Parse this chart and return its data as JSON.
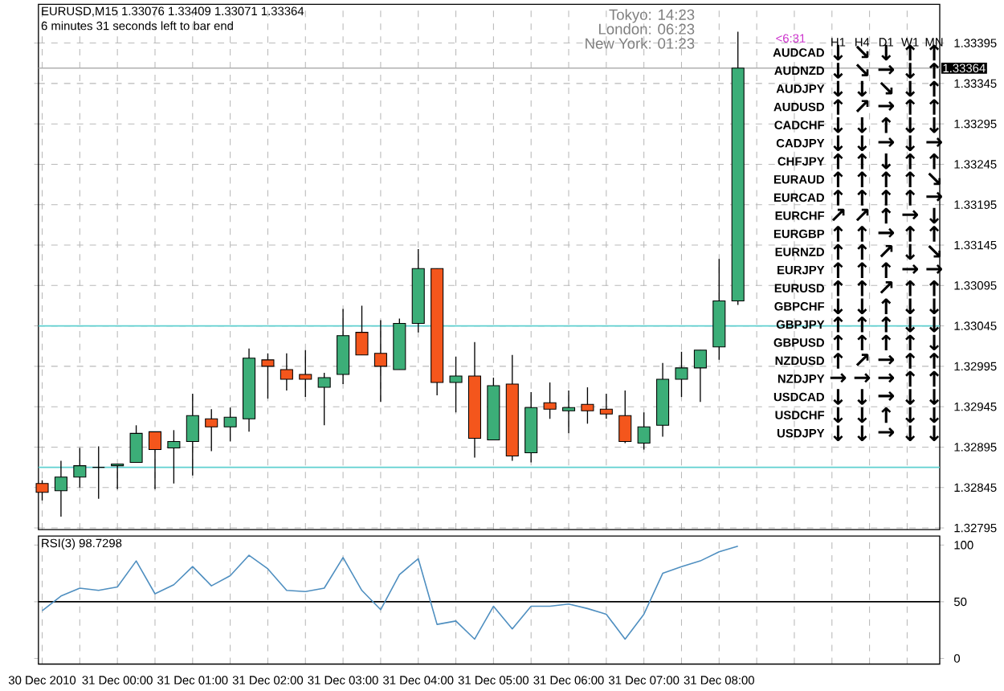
{
  "chart_data": [
    {
      "type": "candlestick",
      "title": "EURUSD,M15  1.33076 1.33409 1.33071 1.33364",
      "subtitle": "6 minutes 31 seconds left to bar end",
      "x": [
        "2010-12-30T23:00",
        "2010-12-30T23:15",
        "2010-12-30T23:30",
        "2010-12-30T23:45",
        "2010-12-31T00:00",
        "2010-12-31T00:15",
        "2010-12-31T00:30",
        "2010-12-31T00:45",
        "2010-12-31T01:00",
        "2010-12-31T01:15",
        "2010-12-31T01:30",
        "2010-12-31T01:45",
        "2010-12-31T02:00",
        "2010-12-31T02:15",
        "2010-12-31T02:30",
        "2010-12-31T02:45",
        "2010-12-31T03:00",
        "2010-12-31T03:15",
        "2010-12-31T03:30",
        "2010-12-31T03:45",
        "2010-12-31T04:00",
        "2010-12-31T04:15",
        "2010-12-31T04:30",
        "2010-12-31T04:45",
        "2010-12-31T05:00",
        "2010-12-31T05:15",
        "2010-12-31T05:30",
        "2010-12-31T05:45",
        "2010-12-31T06:00",
        "2010-12-31T06:15",
        "2010-12-31T06:30",
        "2010-12-31T06:45",
        "2010-12-31T07:00",
        "2010-12-31T07:15",
        "2010-12-31T07:30",
        "2010-12-31T07:45",
        "2010-12-31T08:00",
        "2010-12-31T08:15"
      ],
      "ohlc": [
        [
          1.3285,
          1.32854,
          1.32829,
          1.32839
        ],
        [
          1.32841,
          1.32878,
          1.32809,
          1.32858
        ],
        [
          1.32858,
          1.32894,
          1.32845,
          1.32872
        ],
        [
          1.3287,
          1.32896,
          1.32831,
          1.3287
        ],
        [
          1.32872,
          1.32874,
          1.32843,
          1.32874
        ],
        [
          1.32876,
          1.32922,
          1.32876,
          1.32912
        ],
        [
          1.32914,
          1.32914,
          1.32843,
          1.32892
        ],
        [
          1.32894,
          1.32916,
          1.3285,
          1.32902
        ],
        [
          1.32902,
          1.32961,
          1.3286,
          1.32934
        ],
        [
          1.3293,
          1.32942,
          1.3289,
          1.3292
        ],
        [
          1.3292,
          1.32944,
          1.32902,
          1.32932
        ],
        [
          1.3293,
          1.33017,
          1.32914,
          1.33005
        ],
        [
          1.33003,
          1.33011,
          1.32955,
          1.32995
        ],
        [
          1.32991,
          1.33011,
          1.32965,
          1.32979
        ],
        [
          1.32985,
          1.33015,
          1.32957,
          1.32979
        ],
        [
          1.32969,
          1.32987,
          1.32922,
          1.32981
        ],
        [
          1.32985,
          1.33066,
          1.32973,
          1.33033
        ],
        [
          1.33037,
          1.3307,
          1.33009,
          1.33009
        ],
        [
          1.33011,
          1.33052,
          1.32951,
          1.32995
        ],
        [
          1.32991,
          1.33054,
          1.32991,
          1.33048
        ],
        [
          1.33048,
          1.3314,
          1.33037,
          1.33116
        ],
        [
          1.33116,
          1.33116,
          1.32959,
          1.32975
        ],
        [
          1.32975,
          1.33007,
          1.32938,
          1.32983
        ],
        [
          1.32983,
          1.33025,
          1.32882,
          1.32906
        ],
        [
          1.32904,
          1.32981,
          1.32904,
          1.32971
        ],
        [
          1.32973,
          1.33009,
          1.32878,
          1.32884
        ],
        [
          1.32888,
          1.32963,
          1.32876,
          1.32944
        ],
        [
          1.3295,
          1.32975,
          1.3293,
          1.32942
        ],
        [
          1.3294,
          1.32965,
          1.32912,
          1.32944
        ],
        [
          1.32948,
          1.32969,
          1.32924,
          1.3294
        ],
        [
          1.32942,
          1.32961,
          1.3293,
          1.32936
        ],
        [
          1.32934,
          1.32965,
          1.329,
          1.32902
        ],
        [
          1.329,
          1.32938,
          1.32892,
          1.3292
        ],
        [
          1.32922,
          1.32999,
          1.32908,
          1.32979
        ],
        [
          1.32979,
          1.33013,
          1.32957,
          1.32993
        ],
        [
          1.32993,
          1.33015,
          1.32951,
          1.33015
        ],
        [
          1.33019,
          1.33128,
          1.33003,
          1.33076
        ],
        [
          1.33076,
          1.33409,
          1.33071,
          1.33364
        ]
      ],
      "colors": [
        "#f4561c",
        "#3cae78",
        "#3cae78",
        "#000000",
        "#3cae78",
        "#3cae78",
        "#f4561c",
        "#3cae78",
        "#3cae78",
        "#f4561c",
        "#3cae78",
        "#3cae78",
        "#f4561c",
        "#f4561c",
        "#f4561c",
        "#3cae78",
        "#3cae78",
        "#f4561c",
        "#f4561c",
        "#3cae78",
        "#3cae78",
        "#f4561c",
        "#3cae78",
        "#f4561c",
        "#3cae78",
        "#f4561c",
        "#3cae78",
        "#f4561c",
        "#3cae78",
        "#f4561c",
        "#f4561c",
        "#f4561c",
        "#3cae78",
        "#3cae78",
        "#3cae78",
        "#3cae78",
        "#3cae78",
        "#3cae78"
      ],
      "xlim": [
        "2010-12-30T22:57",
        "2010-12-31T10:56"
      ],
      "xticks": [
        {
          "value": "2010-12-30T23:00",
          "label": null
        },
        {
          "value": "2010-12-30T23:30",
          "label": null
        },
        {
          "value": "2010-12-31T00:00",
          "label": null
        },
        {
          "value": "2010-12-31T00:30",
          "label": null
        },
        {
          "value": "2010-12-31T01:00",
          "label": null
        },
        {
          "value": "2010-12-31T01:30",
          "label": null
        },
        {
          "value": "2010-12-31T02:00",
          "label": null
        },
        {
          "value": "2010-12-31T02:30",
          "label": null
        },
        {
          "value": "2010-12-31T03:00",
          "label": null
        },
        {
          "value": "2010-12-31T03:30",
          "label": null
        },
        {
          "value": "2010-12-31T04:00",
          "label": null
        },
        {
          "value": "2010-12-31T04:30",
          "label": null
        },
        {
          "value": "2010-12-31T05:00",
          "label": null
        },
        {
          "value": "2010-12-31T05:30",
          "label": null
        },
        {
          "value": "2010-12-31T06:00",
          "label": null
        },
        {
          "value": "2010-12-31T06:30",
          "label": null
        },
        {
          "value": "2010-12-31T07:00",
          "label": null
        },
        {
          "value": "2010-12-31T07:30",
          "label": null
        },
        {
          "value": "2010-12-31T08:00",
          "label": null
        },
        {
          "value": "2010-12-31T08:30",
          "label": null
        },
        {
          "value": "2010-12-31T09:00",
          "label": null
        },
        {
          "value": "2010-12-31T09:30",
          "label": null
        },
        {
          "value": "2010-12-31T10:00",
          "label": null
        },
        {
          "value": "2010-12-31T10:30",
          "label": null
        }
      ],
      "ylim": [
        1.32793,
        1.33443
      ],
      "yticks": [
        1.32795,
        1.32845,
        1.32895,
        1.32945,
        1.32995,
        1.33045,
        1.33095,
        1.33145,
        1.33195,
        1.33245,
        1.33295,
        1.33345,
        1.33395
      ],
      "tick_labels": "y",
      "grid": true,
      "ref_lines": [
        {
          "axis": "y",
          "value": 1.33045,
          "color": "#5fd0d0"
        },
        {
          "axis": "y",
          "value": 1.3287,
          "color": "#5fd0d0"
        },
        {
          "axis": "y",
          "value": 1.33364,
          "label": "1.33364",
          "color": "#b0b0b0"
        }
      ],
      "annotations": [
        "<6:31",
        "Tokyo: 14:23",
        "London: 06:23",
        "New York: 01:23"
      ]
    },
    {
      "type": "other",
      "categories": [
        "H1",
        "H4",
        "D1",
        "W1",
        "MN"
      ],
      "y_categories": [
        "AUDCAD",
        "AUDNZD",
        "AUDJPY",
        "AUDUSD",
        "CADCHF",
        "CADJPY",
        "CHFJPY",
        "EURAUD",
        "EURCAD",
        "EURCHF",
        "EURGBP",
        "EURNZD",
        "EURJPY",
        "EURUSD",
        "GBPCHF",
        "GBPJPY",
        "GBPUSD",
        "NZDUSD",
        "NZDJPY",
        "USDCAD",
        "USDCHF",
        "USDJPY"
      ],
      "cell_labels": [
        [
          "↓",
          "↘",
          "↓",
          "↑",
          "↑"
        ],
        [
          "↓",
          "↘",
          "→",
          "↓",
          "↑"
        ],
        [
          "↓",
          "↓",
          "↘",
          "↓",
          "↑"
        ],
        [
          "↑",
          "↗",
          "→",
          "↑",
          "↑"
        ],
        [
          "↓",
          "↓",
          "↑",
          "↓",
          "↓"
        ],
        [
          "↓",
          "↓",
          "→",
          "↓",
          "→"
        ],
        [
          "↑",
          "↑",
          "↓",
          "↑",
          "↑"
        ],
        [
          "↑",
          "↑",
          "↑",
          "↑",
          "↘"
        ],
        [
          "↑",
          "↑",
          "↑",
          "↑",
          "→"
        ],
        [
          "↗",
          "↗",
          "↑",
          "→",
          "↓"
        ],
        [
          "↑",
          "↑",
          "→",
          "↑",
          "↑"
        ],
        [
          "↑",
          "↑",
          "↗",
          "↓",
          "↘"
        ],
        [
          "↑",
          "↑",
          "↑",
          "→",
          "→"
        ],
        [
          "↑",
          "↑",
          "↗",
          "↑",
          "↑"
        ],
        [
          "↓",
          "↓",
          "↑",
          "↓",
          "↓"
        ],
        [
          "↑",
          "↑",
          "↑",
          "↓",
          "↓"
        ],
        [
          "↑",
          "↑",
          "↑",
          "↑",
          "↓"
        ],
        [
          "↑",
          "↗",
          "→",
          "↑",
          "↑"
        ],
        [
          "→",
          "→",
          "→",
          "↑",
          "↑"
        ],
        [
          "↓",
          "↓",
          "→",
          "↓",
          "↓"
        ],
        [
          "↓",
          "↓",
          "↑",
          "↓",
          "↓"
        ],
        [
          "↓",
          "↓",
          "→",
          "↓",
          "↓"
        ]
      ]
    },
    {
      "type": "line",
      "title": "RSI(3) 98.7298",
      "x": [
        "2010-12-30T23:00",
        "2010-12-30T23:15",
        "2010-12-30T23:30",
        "2010-12-30T23:45",
        "2010-12-31T00:00",
        "2010-12-31T00:15",
        "2010-12-31T00:30",
        "2010-12-31T00:45",
        "2010-12-31T01:00",
        "2010-12-31T01:15",
        "2010-12-31T01:30",
        "2010-12-31T01:45",
        "2010-12-31T02:00",
        "2010-12-31T02:15",
        "2010-12-31T02:30",
        "2010-12-31T02:45",
        "2010-12-31T03:00",
        "2010-12-31T03:15",
        "2010-12-31T03:30",
        "2010-12-31T03:45",
        "2010-12-31T04:00",
        "2010-12-31T04:15",
        "2010-12-31T04:30",
        "2010-12-31T04:45",
        "2010-12-31T05:00",
        "2010-12-31T05:15",
        "2010-12-31T05:30",
        "2010-12-31T05:45",
        "2010-12-31T06:00",
        "2010-12-31T06:15",
        "2010-12-31T06:30",
        "2010-12-31T06:45",
        "2010-12-31T07:00",
        "2010-12-31T07:15",
        "2010-12-31T07:30",
        "2010-12-31T07:45",
        "2010-12-31T08:00",
        "2010-12-31T08:15"
      ],
      "series": [
        {
          "color": "#4f8fc0",
          "values": [
            42,
            55,
            62,
            60,
            63,
            86,
            57,
            65,
            81,
            64,
            73,
            91,
            79,
            60,
            59,
            62,
            89,
            60,
            43,
            74,
            88,
            30,
            33,
            17,
            46,
            26,
            46,
            46,
            48,
            44,
            39,
            17,
            39,
            75,
            81,
            86,
            94,
            99
          ]
        }
      ],
      "xlim": [
        "2010-12-30T22:57",
        "2010-12-31T10:56"
      ],
      "xticks": [
        {
          "value": "2010-12-30T23:00",
          "label": "30 Dec 2010"
        },
        {
          "value": "2010-12-30T23:30",
          "label": null
        },
        {
          "value": "2010-12-31T00:00",
          "label": "31 Dec 00:00"
        },
        {
          "value": "2010-12-31T00:30",
          "label": null
        },
        {
          "value": "2010-12-31T01:00",
          "label": "31 Dec 01:00"
        },
        {
          "value": "2010-12-31T01:30",
          "label": null
        },
        {
          "value": "2010-12-31T02:00",
          "label": "31 Dec 02:00"
        },
        {
          "value": "2010-12-31T02:30",
          "label": null
        },
        {
          "value": "2010-12-31T03:00",
          "label": "31 Dec 03:00"
        },
        {
          "value": "2010-12-31T03:30",
          "label": null
        },
        {
          "value": "2010-12-31T04:00",
          "label": "31 Dec 04:00"
        },
        {
          "value": "2010-12-31T04:30",
          "label": null
        },
        {
          "value": "2010-12-31T05:00",
          "label": "31 Dec 05:00"
        },
        {
          "value": "2010-12-31T05:30",
          "label": null
        },
        {
          "value": "2010-12-31T06:00",
          "label": "31 Dec 06:00"
        },
        {
          "value": "2010-12-31T06:30",
          "label": null
        },
        {
          "value": "2010-12-31T07:00",
          "label": "31 Dec 07:00"
        },
        {
          "value": "2010-12-31T07:30",
          "label": null
        },
        {
          "value": "2010-12-31T08:00",
          "label": "31 Dec 08:00"
        },
        {
          "value": "2010-12-31T08:30",
          "label": null
        },
        {
          "value": "2010-12-31T09:00",
          "label": null
        },
        {
          "value": "2010-12-31T09:30",
          "label": null
        },
        {
          "value": "2010-12-31T10:00",
          "label": null
        },
        {
          "value": "2010-12-31T10:30",
          "label": null
        }
      ],
      "ylim": [
        -5,
        108
      ],
      "yticks": [
        0,
        50,
        100
      ],
      "grid": "x",
      "ref_lines": [
        {
          "axis": "y",
          "value": 50,
          "color": "#000000"
        }
      ]
    }
  ]
}
